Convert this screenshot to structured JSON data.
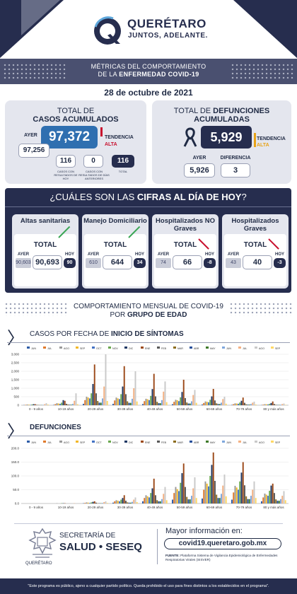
{
  "header": {
    "brand": "QUERÉTARO",
    "slogan": "JUNTOS, ADELANTE."
  },
  "banner": {
    "line1": "MÉTRICAS DEL COMPORTAMIENTO",
    "line2_prefix": "DE LA ",
    "line2_bold": "ENFERMEDAD COVID-19"
  },
  "date": "28 de octubre de 2021",
  "cases": {
    "title1": "TOTAL DE",
    "title2": "CASOS ACUMULADOS",
    "ayer_label": "AYER",
    "ayer_value": "97,256",
    "total_value": "97,372",
    "tendencia_label": "TENDENCIA",
    "tendencia_value": "ALTA",
    "box1_value": "116",
    "box1_label": "CASOS CON RESULTADOS DE HOY",
    "box2_value": "0",
    "box2_label": "CASOS CON RESULTADOS DE DÍAS ANTERIORES",
    "box3_value": "116",
    "box3_label": "TOTAL"
  },
  "deaths": {
    "title1": "TOTAL DE ",
    "title1_bold": "DEFUNCIONES",
    "title2": "ACUMULADAS",
    "total_value": "5,929",
    "tendencia_label": "TENDENCIA",
    "tendencia_value": "ALTA",
    "ayer_label": "AYER",
    "ayer_value": "5,926",
    "dif_label": "DIFERENCIA",
    "dif_value": "3"
  },
  "today": {
    "title_prefix": "¿CUÁLES SON LAS ",
    "title_bold": "CIFRAS AL DÍA DE HOY",
    "title_suffix": "?",
    "cards": [
      {
        "title": "Altas sanitarias",
        "total": "TOTAL",
        "ayer_label": "AYER",
        "hoy_label": "HOY",
        "prev": "90,603",
        "cur": "90,693",
        "delta": "90",
        "trend": "up"
      },
      {
        "title": "Manejo Domiciliario",
        "total": "TOTAL",
        "ayer_label": "AYER",
        "hoy_label": "HOY",
        "prev": "610",
        "cur": "644",
        "delta": "34",
        "trend": "up"
      },
      {
        "title": "Hospitalizados NO Graves",
        "total": "TOTAL",
        "ayer_label": "AYER",
        "hoy_label": "HOY",
        "prev": "74",
        "cur": "66",
        "delta": "-8",
        "trend": "down"
      },
      {
        "title": "Hospitalizados Graves",
        "total": "TOTAL",
        "ayer_label": "AYER",
        "hoy_label": "HOY",
        "prev": "43",
        "cur": "40",
        "delta": "-3",
        "trend": "down"
      }
    ]
  },
  "monthly": {
    "line1": "COMPORTAMIENTO MENSUAL DE COVID-19",
    "line2_prefix": "POR ",
    "line2_bold": "GRUPO DE EDAD"
  },
  "section1": {
    "prefix": "CASOS POR FECHA DE ",
    "bold": "INICIO DE SÍNTOMAS"
  },
  "section2": {
    "title": "DEFUNCIONES"
  },
  "chart_data": [
    {
      "type": "bar",
      "categories": [
        "0 - 9 años",
        "10-19 años",
        "20-29 años",
        "30-39 años",
        "40-49 años",
        "50-59 años",
        "60-69 años",
        "70-79 años",
        "80 y más años"
      ],
      "legend": [
        "JUN",
        "JUL",
        "AGO",
        "SEP",
        "OCT",
        "NOV",
        "DIC",
        "ENE",
        "FEB",
        "MAR",
        "ABR",
        "MAY",
        "JUN",
        "JUL",
        "AGO",
        "SEP"
      ],
      "colors": [
        "#2e5da8",
        "#e07a2c",
        "#9a9a9a",
        "#f2b829",
        "#4472c4",
        "#6aa84f",
        "#1f3864",
        "#9c4a1a",
        "#595959",
        "#8c6d1f",
        "#29509a",
        "#3f7a2a",
        "#7fa7dc",
        "#f4b183",
        "#c9c9c9",
        "#ffd966"
      ],
      "ylim": [
        0,
        3000
      ],
      "yticks": [
        "0",
        "500",
        "1,000",
        "1,500",
        "2,000",
        "2,500",
        "3,000"
      ],
      "series_values": [
        [
          10,
          20,
          40,
          30,
          20,
          40,
          60,
          60,
          20,
          15,
          10,
          10,
          20,
          60,
          120,
          40
        ],
        [
          20,
          60,
          120,
          100,
          80,
          150,
          300,
          260,
          80,
          40,
          30,
          30,
          80,
          260,
          700,
          60
        ],
        [
          80,
          300,
          500,
          450,
          400,
          700,
          1250,
          2400,
          700,
          250,
          150,
          150,
          400,
          1100,
          3100,
          250
        ],
        [
          80,
          280,
          450,
          400,
          360,
          650,
          1100,
          2300,
          650,
          230,
          140,
          140,
          380,
          1000,
          2000,
          220
        ],
        [
          70,
          240,
          380,
          350,
          300,
          550,
          950,
          1850,
          520,
          200,
          120,
          120,
          300,
          800,
          1400,
          180
        ],
        [
          60,
          200,
          320,
          290,
          240,
          460,
          780,
          1500,
          420,
          160,
          100,
          100,
          230,
          600,
          900,
          140
        ],
        [
          40,
          130,
          220,
          200,
          170,
          320,
          520,
          960,
          280,
          110,
          70,
          70,
          150,
          360,
          500,
          90
        ],
        [
          20,
          60,
          110,
          100,
          85,
          160,
          260,
          450,
          140,
          50,
          35,
          35,
          70,
          150,
          210,
          40
        ],
        [
          10,
          30,
          60,
          55,
          45,
          80,
          130,
          220,
          70,
          25,
          18,
          18,
          30,
          70,
          100,
          20
        ]
      ]
    },
    {
      "type": "bar",
      "categories": [
        "0 - 9 años",
        "10-19 años",
        "20-29 años",
        "30-39 años",
        "40-49 años",
        "50-59 años",
        "60-69 años",
        "70-79 años",
        "80 y más años"
      ],
      "legend": [
        "JUN",
        "JUL",
        "AGO",
        "SEP",
        "OCT",
        "NOV",
        "DIC",
        "ENE",
        "FEB",
        "MAR",
        "ABR",
        "MAY",
        "JUN",
        "JUL",
        "AGO",
        "SEP"
      ],
      "colors": [
        "#2e5da8",
        "#e07a2c",
        "#9a9a9a",
        "#f2b829",
        "#4472c4",
        "#6aa84f",
        "#1f3864",
        "#9c4a1a",
        "#595959",
        "#8c6d1f",
        "#29509a",
        "#3f7a2a",
        "#7fa7dc",
        "#f4b183",
        "#c9c9c9",
        "#ffd966"
      ],
      "ylim": [
        0,
        200
      ],
      "yticks": [
        "0.0",
        "50.0",
        "100.0",
        "150.0",
        "200.0"
      ],
      "series_values": [
        [
          0,
          0,
          0,
          0,
          0,
          0,
          0,
          0,
          0,
          0,
          0,
          0,
          0,
          0,
          0,
          0
        ],
        [
          0,
          0,
          1,
          0,
          0,
          1,
          1,
          1,
          0,
          0,
          0,
          0,
          0,
          1,
          1,
          0
        ],
        [
          1,
          2,
          4,
          3,
          2,
          4,
          6,
          8,
          3,
          1,
          1,
          1,
          2,
          5,
          8,
          2
        ],
        [
          3,
          8,
          12,
          10,
          8,
          14,
          20,
          30,
          10,
          4,
          3,
          3,
          6,
          14,
          22,
          5
        ],
        [
          8,
          20,
          30,
          26,
          22,
          38,
          55,
          90,
          30,
          12,
          8,
          8,
          16,
          35,
          60,
          12
        ],
        [
          14,
          38,
          60,
          52,
          45,
          75,
          110,
          145,
          60,
          24,
          15,
          15,
          28,
          55,
          95,
          20
        ],
        [
          18,
          50,
          80,
          72,
          62,
          100,
          140,
          185,
          82,
          32,
          20,
          20,
          35,
          65,
          105,
          26
        ],
        [
          14,
          40,
          64,
          58,
          50,
          80,
          112,
          150,
          66,
          26,
          16,
          16,
          28,
          50,
          80,
          20
        ],
        [
          8,
          22,
          36,
          32,
          28,
          46,
          65,
          72,
          38,
          15,
          10,
          10,
          16,
          28,
          45,
          12
        ]
      ]
    }
  ],
  "footer": {
    "sec1": "SECRETARÍA DE",
    "sec2": "SALUD • SESEQ",
    "qro_small": "QUERÉTARO",
    "more": "Mayor información en:",
    "url": "covid19.queretaro.gob.mx",
    "src_bold": "FUENTE:",
    "src_text": " Plataforma Sistema de Vigilancia Epidemiológica de Enfermedades Respiratorias Virales (SISVER)",
    "disclaimer": "\"Este programa es público, ajeno a cualquier partido político. Queda prohibido el uso para fines distintos a los establecidos en el programa\"."
  }
}
